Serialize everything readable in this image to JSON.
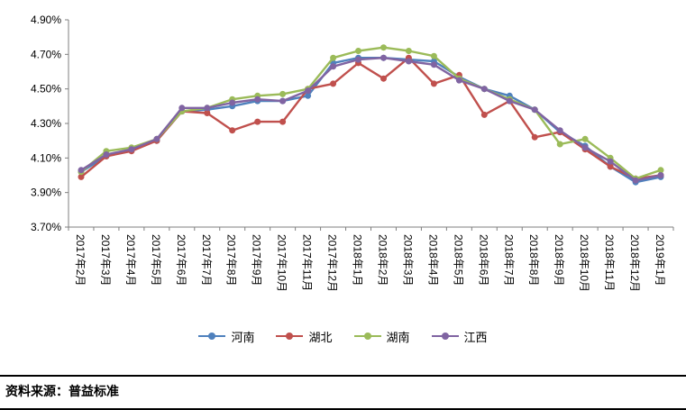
{
  "chart_data": {
    "type": "line",
    "categories": [
      "2017年2月",
      "2017年3月",
      "2017年4月",
      "2017年5月",
      "2017年6月",
      "2017年7月",
      "2017年8月",
      "2017年9月",
      "2017年10月",
      "2017年11月",
      "2017年12月",
      "2018年1月",
      "2018年2月",
      "2018年3月",
      "2018年4月",
      "2018年5月",
      "2018年6月",
      "2018年7月",
      "2018年8月",
      "2018年9月",
      "2018年10月",
      "2018年11月",
      "2018年12月",
      "2019年1月"
    ],
    "series": [
      {
        "name": "河南",
        "color": "#4F81BD",
        "marker": "circle",
        "values": [
          4.02,
          4.11,
          4.15,
          4.2,
          4.37,
          4.38,
          4.4,
          4.43,
          4.43,
          4.46,
          4.65,
          4.68,
          4.68,
          4.67,
          4.66,
          4.57,
          4.5,
          4.46,
          4.38,
          4.25,
          4.17,
          4.05,
          3.96,
          3.99
        ]
      },
      {
        "name": "湖北",
        "color": "#C0504D",
        "marker": "circle",
        "values": [
          3.99,
          4.11,
          4.14,
          4.2,
          4.37,
          4.36,
          4.26,
          4.31,
          4.31,
          4.5,
          4.53,
          4.65,
          4.56,
          4.68,
          4.53,
          4.58,
          4.35,
          4.43,
          4.22,
          4.25,
          4.15,
          4.05,
          3.98,
          4.0
        ]
      },
      {
        "name": "湖南",
        "color": "#9BBB59",
        "marker": "circle",
        "values": [
          4.02,
          4.14,
          4.16,
          4.21,
          4.37,
          4.39,
          4.44,
          4.46,
          4.47,
          4.5,
          4.68,
          4.72,
          4.74,
          4.72,
          4.69,
          4.56,
          4.5,
          4.44,
          4.38,
          4.18,
          4.21,
          4.1,
          3.98,
          4.03
        ]
      },
      {
        "name": "江西",
        "color": "#8064A2",
        "marker": "circle",
        "values": [
          4.03,
          4.12,
          4.15,
          4.21,
          4.39,
          4.39,
          4.42,
          4.44,
          4.43,
          4.49,
          4.63,
          4.67,
          4.68,
          4.66,
          4.64,
          4.55,
          4.5,
          4.43,
          4.38,
          4.26,
          4.16,
          4.08,
          3.97,
          4.0
        ]
      }
    ],
    "ylim": [
      3.7,
      4.9
    ],
    "ytick_step": 0.2,
    "ytick_labels": [
      "4.90%",
      "4.70%",
      "4.50%",
      "4.30%",
      "4.10%",
      "3.90%",
      "3.70%"
    ],
    "grid": false,
    "legend_position": "bottom",
    "axis_color": "#7f7f7f"
  },
  "footer": {
    "source_label": "资料来源：普益标准"
  }
}
